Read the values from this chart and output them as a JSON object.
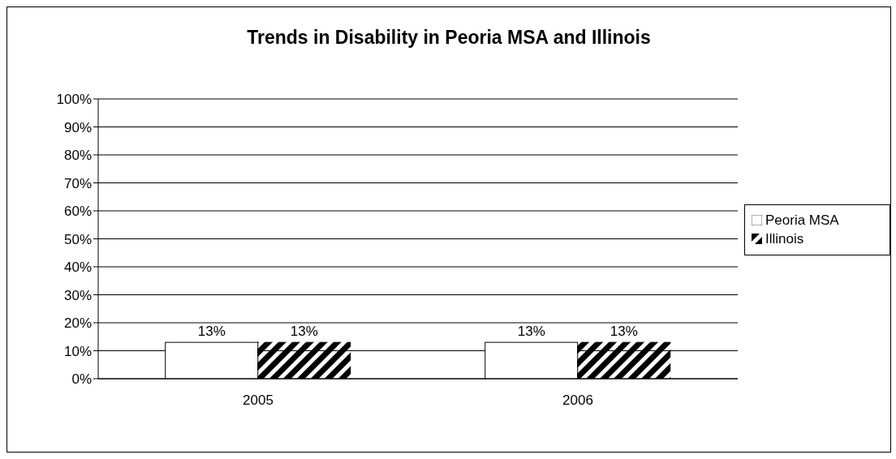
{
  "chart_data": {
    "type": "bar",
    "title": "Trends in Disability in Peoria MSA and Illinois",
    "categories": [
      "2005",
      "2006"
    ],
    "series": [
      {
        "name": "Peoria MSA",
        "color": "#ffffff",
        "values": [
          13,
          13
        ],
        "value_labels": [
          "13%",
          "13%"
        ]
      },
      {
        "name": "Illinois",
        "color": "#000000",
        "values": [
          13,
          13
        ],
        "value_labels": [
          "13%",
          "13%"
        ]
      }
    ],
    "ylim": [
      0,
      100
    ],
    "yticks": [
      {
        "value": 0,
        "label": "0%"
      },
      {
        "value": 10,
        "label": "10%"
      },
      {
        "value": 20,
        "label": "20%"
      },
      {
        "value": 30,
        "label": "30%"
      },
      {
        "value": 40,
        "label": "40%"
      },
      {
        "value": 50,
        "label": "50%"
      },
      {
        "value": 60,
        "label": "60%"
      },
      {
        "value": 70,
        "label": "70%"
      },
      {
        "value": 80,
        "label": "80%"
      },
      {
        "value": 90,
        "label": "90%"
      },
      {
        "value": 100,
        "label": "100%"
      }
    ],
    "grid": "y",
    "legend": "right"
  }
}
